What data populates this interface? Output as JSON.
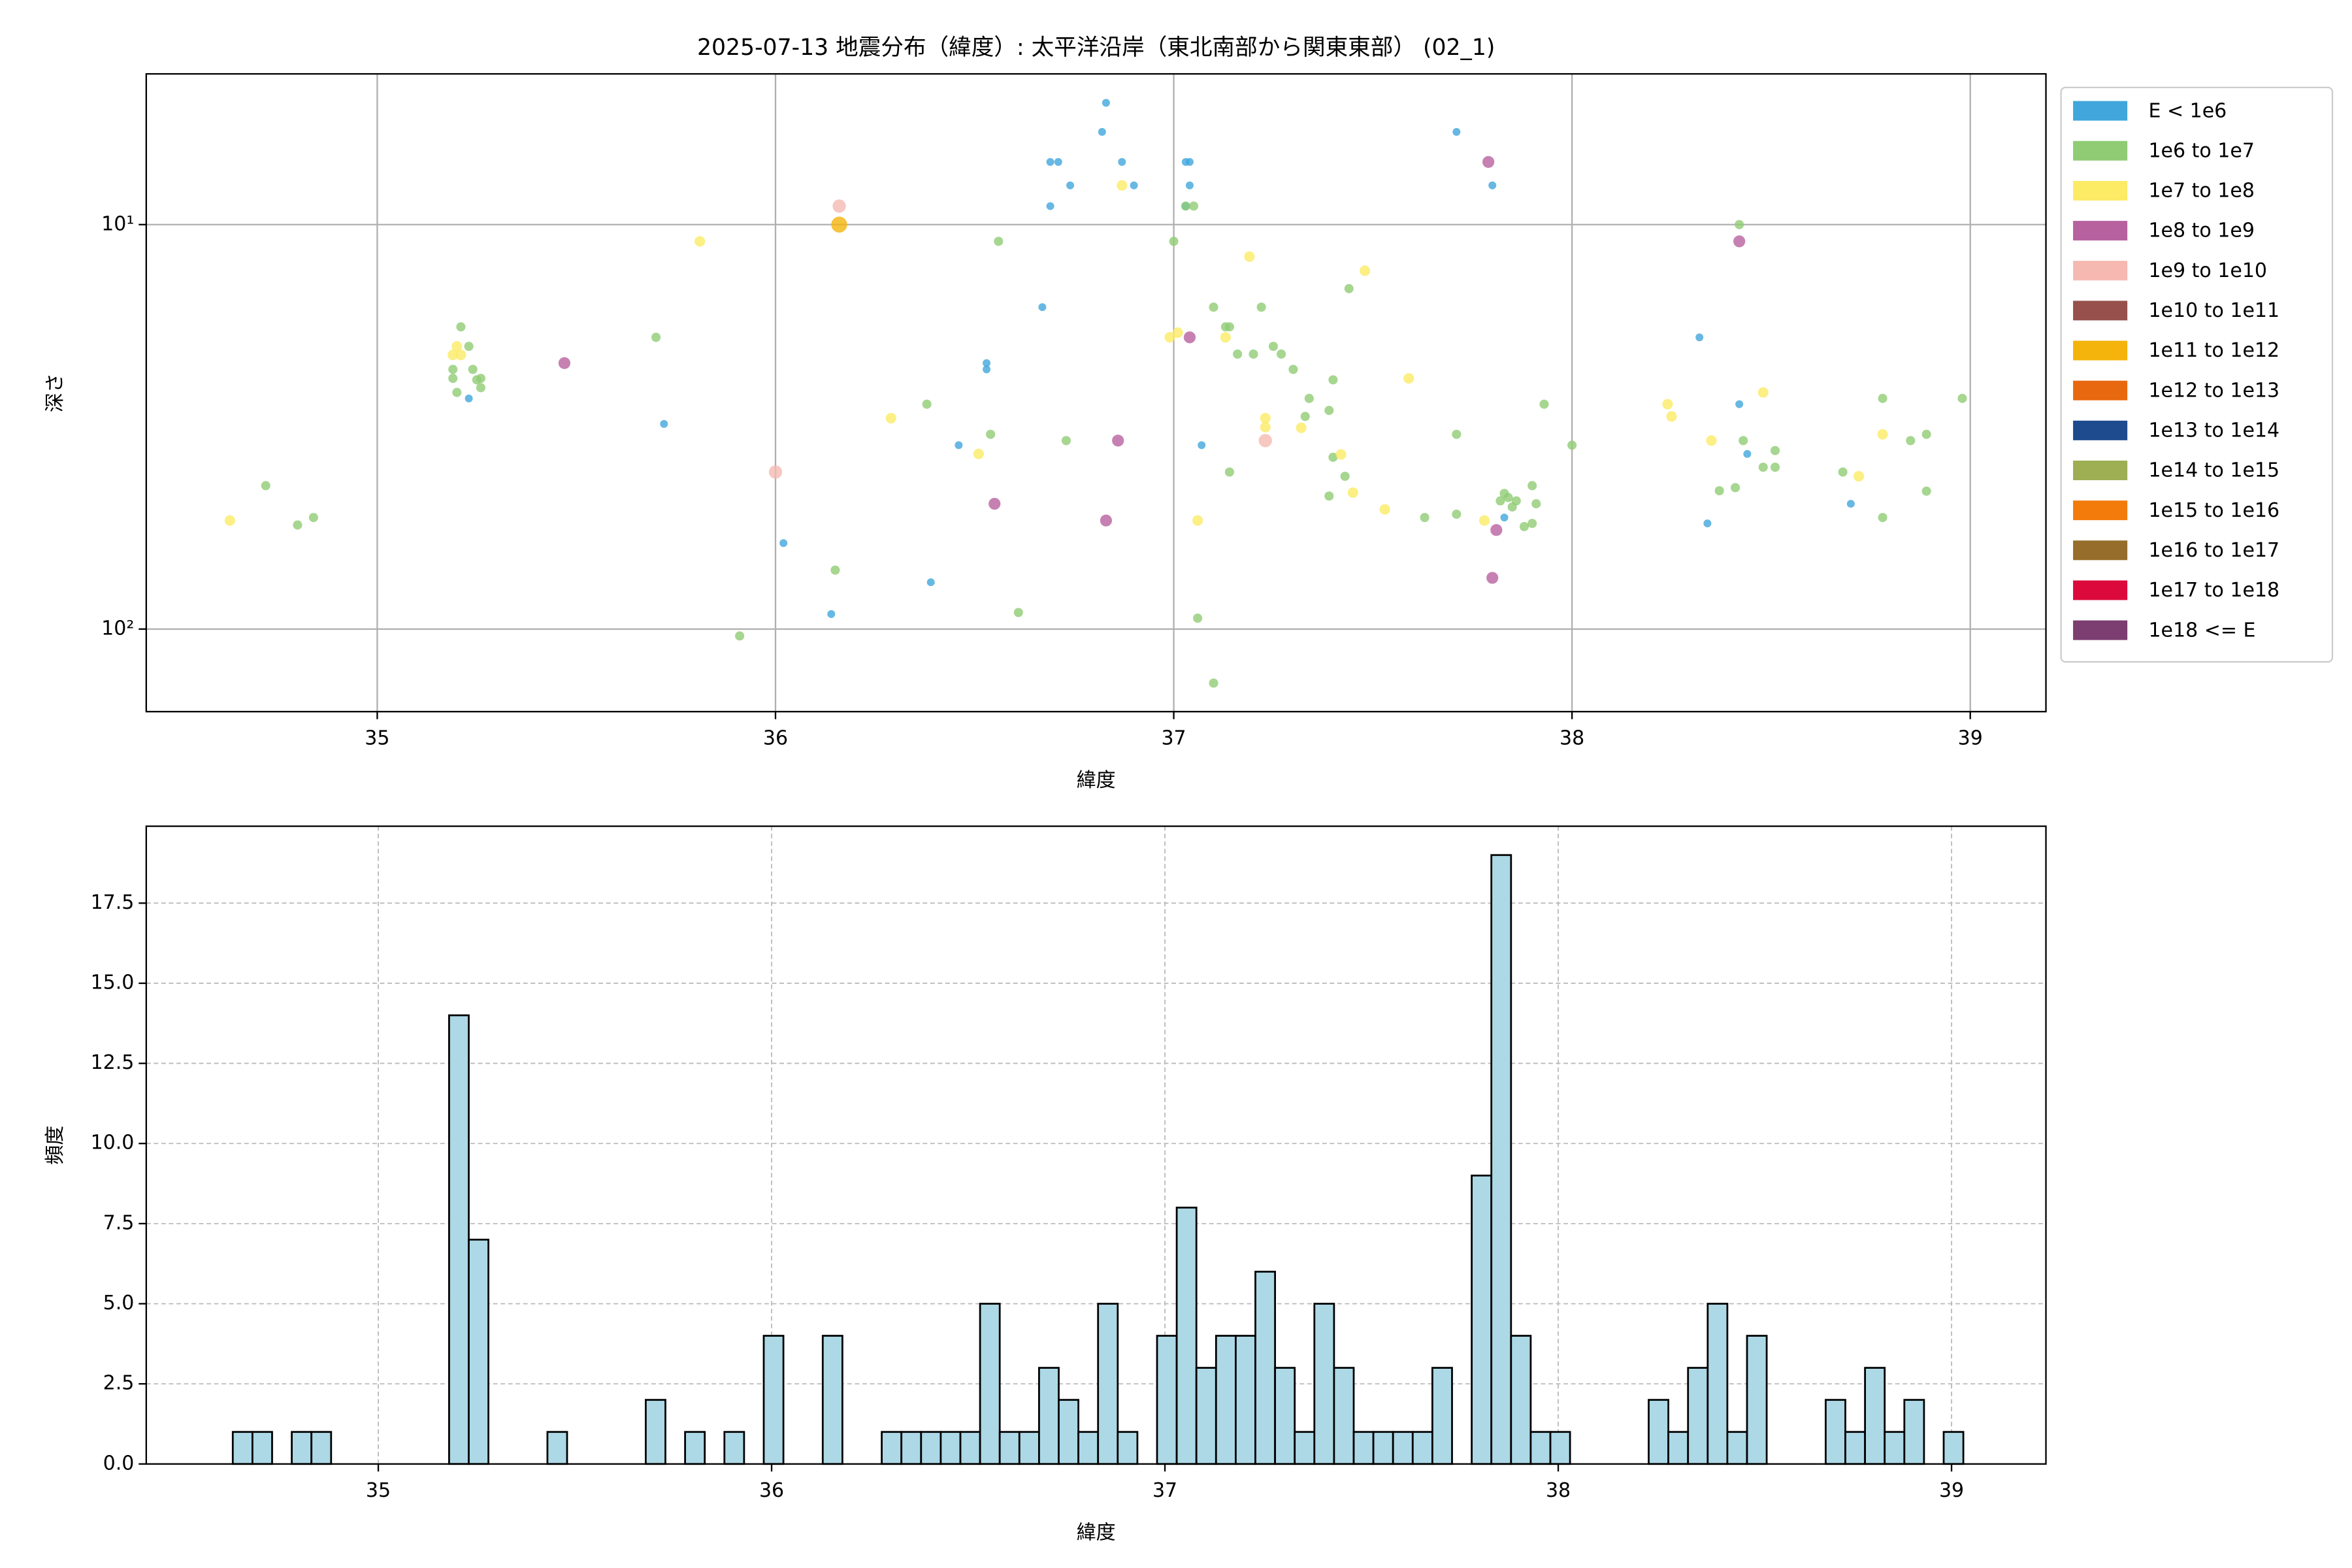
{
  "chart_data": [
    {
      "type": "scatter",
      "title": "2025-07-13 地震分布（緯度）: 太平洋沿岸（東北南部から関東東部） (02_1)",
      "x_label": "緯度",
      "y_label": "深さ",
      "xlim": [
        34.42,
        39.19
      ],
      "ylim": [
        160,
        4.24
      ],
      "log_y": true,
      "xticks": [
        35,
        36,
        37,
        38,
        39
      ],
      "yticks": [
        {
          "value": 10,
          "label": "10¹"
        },
        {
          "value": 100,
          "label": "10²"
        }
      ],
      "grid": true,
      "grid_linestyle": "solid",
      "legend": "outside upper right",
      "series": [
        {
          "name": "E < 1e6",
          "color": "#41a6dc",
          "x": [
            36.83,
            36.82,
            36.69,
            36.71,
            36.87,
            37.03,
            37.04,
            36.74,
            36.9,
            37.04,
            36.69,
            37.03,
            37.71,
            37.8,
            36.67,
            36.53,
            36.53,
            35.72,
            35.23,
            36.46,
            37.07,
            38.32,
            38.42,
            38.44,
            38.7,
            37.83,
            38.34,
            36.02,
            36.39,
            36.14
          ],
          "y": [
            5.0,
            5.9,
            7.0,
            7.0,
            7.0,
            7.0,
            7.0,
            8.0,
            8.0,
            8.0,
            9.0,
            9.0,
            5.9,
            8.0,
            16.0,
            22.0,
            22.8,
            31.1,
            26.9,
            35.1,
            35.1,
            19.0,
            27.8,
            36.9,
            49.0,
            53.0,
            54.8,
            61.3,
            76.6,
            91.8
          ]
        },
        {
          "name": "1e6 to 1e7",
          "color": "#90cc74",
          "x": [
            34.72,
            34.8,
            34.84,
            35.21,
            35.19,
            35.19,
            35.2,
            35.23,
            35.24,
            35.25,
            35.26,
            35.26,
            35.7,
            36.38,
            36.54,
            36.56,
            36.73,
            37.0,
            37.03,
            37.05,
            37.1,
            37.13,
            37.14,
            37.16,
            37.2,
            37.22,
            37.25,
            37.27,
            37.3,
            37.34,
            37.33,
            37.39,
            37.4,
            37.44,
            37.4,
            37.43,
            37.39,
            37.71,
            37.71,
            37.63,
            37.93,
            38.0,
            37.9,
            37.91,
            37.9,
            37.88,
            37.82,
            37.84,
            37.85,
            37.86,
            37.83,
            37.14,
            37.06,
            37.1,
            36.61,
            36.15,
            35.91,
            38.42,
            38.43,
            38.37,
            38.41,
            38.51,
            38.48,
            38.51,
            38.68,
            38.78,
            38.78,
            38.85,
            38.89,
            38.89,
            38.98
          ],
          "y": [
            44.2,
            55.3,
            53.0,
            17.9,
            22.8,
            24.0,
            26.0,
            20.0,
            22.8,
            24.2,
            25.3,
            24.0,
            19.0,
            27.8,
            33.0,
            11.0,
            34.2,
            11.0,
            9.0,
            9.0,
            16.0,
            17.9,
            17.9,
            20.9,
            20.9,
            16.0,
            20.0,
            20.9,
            22.8,
            26.9,
            29.8,
            28.8,
            24.2,
            14.4,
            37.6,
            41.9,
            46.9,
            33.0,
            52.0,
            53.0,
            27.8,
            35.1,
            44.2,
            49.0,
            54.8,
            55.8,
            48.2,
            47.3,
            49.9,
            48.2,
            46.2,
            40.9,
            94.0,
            136.0,
            91.0,
            71.5,
            104.0,
            10.0,
            34.2,
            45.5,
            44.7,
            36.2,
            39.8,
            39.8,
            40.9,
            26.9,
            53.0,
            34.2,
            33.0,
            45.6,
            26.9
          ]
        },
        {
          "name": "1e7 to 1e8",
          "color": "#fbeb65",
          "x": [
            34.63,
            35.2,
            35.19,
            35.21,
            35.81,
            36.29,
            36.51,
            36.87,
            36.99,
            37.01,
            37.13,
            37.19,
            37.23,
            37.23,
            37.32,
            37.48,
            37.42,
            37.45,
            37.59,
            37.53,
            37.06,
            37.78,
            38.24,
            38.25,
            38.35,
            38.48,
            38.72,
            38.78
          ],
          "y": [
            53.9,
            20.0,
            21.0,
            21.0,
            11.0,
            30.1,
            36.9,
            8.0,
            19.0,
            18.5,
            19.0,
            12.0,
            30.1,
            31.7,
            31.8,
            13.0,
            37.0,
            46.0,
            24.0,
            50.6,
            53.9,
            53.9,
            27.8,
            29.8,
            34.2,
            26.0,
            41.9,
            33.0
          ]
        },
        {
          "name": "1e8 to 1e9",
          "color": "#b8619f",
          "x": [
            35.47,
            36.55,
            36.86,
            36.83,
            37.04,
            37.79,
            38.42,
            37.81,
            37.8
          ],
          "y": [
            22.0,
            49.0,
            34.2,
            53.9,
            19.0,
            7.0,
            11.0,
            56.9,
            74.7
          ]
        },
        {
          "name": "1e9 to 1e10",
          "color": "#f5b9b1",
          "x": [
            36.16,
            36.0,
            37.23
          ],
          "y": [
            9.0,
            40.9,
            34.2
          ]
        },
        {
          "name": "1e10 to 1e11",
          "color": "#97504b",
          "x": [],
          "y": []
        },
        {
          "name": "1e11 to 1e12",
          "color": "#f5b40c",
          "x": [
            36.16
          ],
          "y": [
            10.0
          ]
        },
        {
          "name": "1e12 to 1e13",
          "color": "#e8680f",
          "x": [],
          "y": []
        },
        {
          "name": "1e13 to 1e14",
          "color": "#1e4a8e",
          "x": [],
          "y": []
        },
        {
          "name": "1e14 to 1e15",
          "color": "#9eae52",
          "x": [],
          "y": []
        },
        {
          "name": "1e15 to 1e16",
          "color": "#f27b0c",
          "x": [],
          "y": []
        },
        {
          "name": "1e16 to 1e17",
          "color": "#966d2b",
          "x": [],
          "y": []
        },
        {
          "name": "1e17 to 1e18",
          "color": "#dc0a3c",
          "x": [],
          "y": []
        },
        {
          "name": "1e18 <= E",
          "color": "#7c3d70",
          "x": [],
          "y": []
        }
      ]
    },
    {
      "type": "histogram",
      "x_label": "緯度",
      "y_label": "頻度",
      "color": "#add8e6",
      "edgecolor": "#000000",
      "xlim": [
        34.41,
        39.24
      ],
      "ylim": [
        0,
        19.9
      ],
      "xticks": [
        35,
        36,
        37,
        38,
        39
      ],
      "yticks": [
        {
          "value": 0,
          "label": "0.0"
        },
        {
          "value": 2.5,
          "label": "2.5"
        },
        {
          "value": 5,
          "label": "5.0"
        },
        {
          "value": 7.5,
          "label": "7.5"
        },
        {
          "value": 10,
          "label": "10.0"
        },
        {
          "value": 12.5,
          "label": "12.5"
        },
        {
          "value": 15,
          "label": "15.0"
        },
        {
          "value": 17.5,
          "label": "17.5"
        }
      ],
      "grid": true,
      "grid_linestyle": "dashed",
      "bins": [
        34.63,
        34.68,
        34.73,
        34.78,
        34.83,
        34.88,
        34.93,
        34.98,
        35.03,
        35.08,
        35.13,
        35.18,
        35.23,
        35.28,
        35.33,
        35.38,
        35.43,
        35.48,
        35.53,
        35.58,
        35.63,
        35.68,
        35.73,
        35.78,
        35.83,
        35.88,
        35.93,
        35.98,
        36.03,
        36.08,
        36.13,
        36.18,
        36.23,
        36.28,
        36.33,
        36.38,
        36.43,
        36.48,
        36.53,
        36.58,
        36.63,
        36.68,
        36.73,
        36.78,
        36.83,
        36.88,
        36.93,
        36.98,
        37.03,
        37.08,
        37.13,
        37.18,
        37.23,
        37.28,
        37.33,
        37.38,
        37.43,
        37.48,
        37.53,
        37.58,
        37.63,
        37.68,
        37.73,
        37.78,
        37.83,
        37.88,
        37.93,
        37.98,
        38.03,
        38.08,
        38.13,
        38.18,
        38.23,
        38.28,
        38.33,
        38.38,
        38.43,
        38.48,
        38.53,
        38.58,
        38.63,
        38.68,
        38.73,
        38.78,
        38.83,
        38.88,
        38.93,
        38.98,
        39.03
      ],
      "counts": [
        1,
        1,
        0,
        1,
        1,
        0,
        0,
        0,
        0,
        0,
        0,
        14,
        7,
        0,
        0,
        0,
        1,
        0,
        0,
        0,
        0,
        2,
        0,
        1,
        0,
        1,
        0,
        4,
        0,
        0,
        4,
        0,
        0,
        1,
        1,
        1,
        1,
        1,
        5,
        1,
        1,
        3,
        2,
        1,
        5,
        1,
        0,
        4,
        8,
        3,
        4,
        4,
        6,
        3,
        1,
        5,
        3,
        1,
        1,
        1,
        1,
        3,
        0,
        9,
        19,
        4,
        1,
        1,
        0,
        0,
        0,
        0,
        2,
        1,
        3,
        5,
        1,
        4,
        0,
        0,
        0,
        2,
        1,
        3,
        1,
        2,
        0,
        1
      ]
    }
  ]
}
